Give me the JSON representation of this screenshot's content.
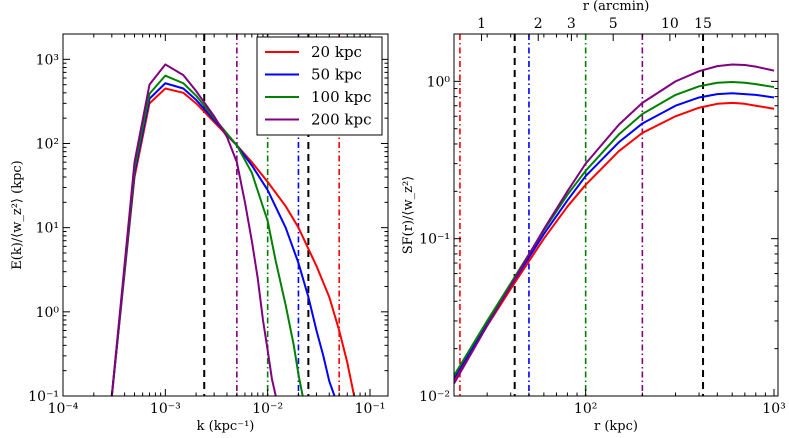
{
  "chart_data": [
    {
      "type": "line",
      "scale": "log-log",
      "xlabel": "k (kpc⁻¹)",
      "ylabel": "E(k)/⟨w_z²⟩ (kpc)",
      "xlim": [
        0.0001,
        0.15
      ],
      "ylim": [
        0.1,
        2000
      ],
      "x_ticks": [
        {
          "value": 0.0001,
          "label": "10⁻⁴"
        },
        {
          "value": 0.001,
          "label": "10⁻³"
        },
        {
          "value": 0.01,
          "label": "10⁻²"
        },
        {
          "value": 0.1,
          "label": "10⁻¹"
        }
      ],
      "y_ticks": [
        {
          "value": 0.1,
          "label": "10⁻¹"
        },
        {
          "value": 1,
          "label": "10⁰"
        },
        {
          "value": 10,
          "label": "10¹"
        },
        {
          "value": 100,
          "label": "10²"
        },
        {
          "value": 1000,
          "label": "10³"
        }
      ],
      "legend": {
        "placement": "top-right"
      },
      "series": [
        {
          "name": "20 kpc",
          "color": "#ff0000",
          "x": [
            0.0003,
            0.0005,
            0.0007,
            0.001,
            0.0015,
            0.002,
            0.003,
            0.005,
            0.007,
            0.01,
            0.015,
            0.02,
            0.03,
            0.04,
            0.05,
            0.06,
            0.07
          ],
          "y": [
            0.1,
            40,
            300,
            450,
            400,
            300,
            180,
            95,
            60,
            35,
            18,
            10,
            3.5,
            1.5,
            0.6,
            0.25,
            0.1
          ]
        },
        {
          "name": "50 kpc",
          "color": "#0000ff",
          "x": [
            0.0003,
            0.0005,
            0.0007,
            0.001,
            0.0015,
            0.002,
            0.003,
            0.005,
            0.007,
            0.01,
            0.015,
            0.02,
            0.025,
            0.03,
            0.035,
            0.04,
            0.045
          ],
          "y": [
            0.1,
            45,
            340,
            520,
            450,
            330,
            190,
            95,
            55,
            28,
            10,
            3.8,
            1.5,
            0.6,
            0.3,
            0.15,
            0.1
          ]
        },
        {
          "name": "100 kpc",
          "color": "#008000",
          "x": [
            0.0003,
            0.0005,
            0.0007,
            0.001,
            0.0015,
            0.002,
            0.003,
            0.005,
            0.007,
            0.01,
            0.012,
            0.015,
            0.018,
            0.02,
            0.022
          ],
          "y": [
            0.1,
            50,
            390,
            640,
            520,
            370,
            200,
            95,
            45,
            12,
            4,
            1.2,
            0.4,
            0.18,
            0.1
          ]
        },
        {
          "name": "200 kpc",
          "color": "#800080",
          "x": [
            0.0003,
            0.0005,
            0.0007,
            0.001,
            0.0015,
            0.002,
            0.003,
            0.004,
            0.005,
            0.006,
            0.007,
            0.008,
            0.009,
            0.01,
            0.011,
            0.012
          ],
          "y": [
            0.1,
            60,
            500,
            870,
            650,
            420,
            210,
            120,
            60,
            20,
            7,
            2.5,
            0.8,
            0.35,
            0.16,
            0.1
          ]
        }
      ],
      "vertical_lines": [
        {
          "x": 0.0024,
          "color": "#000000",
          "style": "dashed"
        },
        {
          "x": 0.025,
          "color": "#000000",
          "style": "dashed"
        },
        {
          "x": 0.005,
          "color": "#800080",
          "style": "dashdot"
        },
        {
          "x": 0.01,
          "color": "#008000",
          "style": "dashdot"
        },
        {
          "x": 0.02,
          "color": "#0000ff",
          "style": "dashdot"
        },
        {
          "x": 0.05,
          "color": "#ff0000",
          "style": "dashdot"
        }
      ]
    },
    {
      "type": "line",
      "scale": "log-log",
      "xlabel": "r (kpc)",
      "ylabel": "SF(r)/⟨w_z²⟩",
      "top_xlabel": "r (arcmin)",
      "xlim": [
        20,
        1050
      ],
      "ylim": [
        0.01,
        2
      ],
      "x_ticks": [
        {
          "value": 100,
          "label": "10²"
        },
        {
          "value": 1000,
          "label": "10³"
        }
      ],
      "top_ticks": [
        {
          "value": 28,
          "label": "1"
        },
        {
          "value": 56,
          "label": "2"
        },
        {
          "value": 84,
          "label": "3"
        },
        {
          "value": 140,
          "label": "5"
        },
        {
          "value": 280,
          "label": "10"
        },
        {
          "value": 420,
          "label": "15"
        }
      ],
      "y_ticks": [
        {
          "value": 0.01,
          "label": "10⁻²"
        },
        {
          "value": 0.1,
          "label": "10⁻¹"
        },
        {
          "value": 1,
          "label": "10⁰"
        }
      ],
      "series": [
        {
          "name": "20 kpc",
          "color": "#ff0000",
          "x": [
            20,
            30,
            40,
            60,
            80,
            100,
            150,
            200,
            300,
            400,
            500,
            600,
            700,
            800,
            1000
          ],
          "y": [
            0.0125,
            0.028,
            0.048,
            0.1,
            0.16,
            0.22,
            0.36,
            0.47,
            0.6,
            0.68,
            0.72,
            0.73,
            0.72,
            0.7,
            0.67
          ]
        },
        {
          "name": "50 kpc",
          "color": "#0000ff",
          "x": [
            20,
            30,
            40,
            60,
            80,
            100,
            150,
            200,
            300,
            400,
            500,
            600,
            700,
            800,
            1000
          ],
          "y": [
            0.013,
            0.029,
            0.05,
            0.107,
            0.175,
            0.25,
            0.41,
            0.54,
            0.7,
            0.79,
            0.83,
            0.84,
            0.83,
            0.82,
            0.79
          ]
        },
        {
          "name": "100 kpc",
          "color": "#008000",
          "x": [
            20,
            30,
            40,
            60,
            80,
            100,
            150,
            200,
            300,
            400,
            500,
            600,
            700,
            800,
            1000
          ],
          "y": [
            0.0135,
            0.03,
            0.052,
            0.113,
            0.19,
            0.27,
            0.46,
            0.62,
            0.82,
            0.93,
            0.98,
            0.99,
            0.98,
            0.96,
            0.92
          ]
        },
        {
          "name": "200 kpc",
          "color": "#800080",
          "x": [
            20,
            30,
            40,
            60,
            80,
            100,
            150,
            200,
            300,
            400,
            500,
            600,
            700,
            800,
            1000
          ],
          "y": [
            0.012,
            0.028,
            0.05,
            0.115,
            0.2,
            0.3,
            0.53,
            0.73,
            1.0,
            1.16,
            1.25,
            1.28,
            1.27,
            1.24,
            1.17
          ]
        }
      ],
      "vertical_lines": [
        {
          "x": 42,
          "color": "#000000",
          "style": "dashed"
        },
        {
          "x": 420,
          "color": "#000000",
          "style": "dashed"
        },
        {
          "x": 21.5,
          "color": "#ff0000",
          "style": "dashdot"
        },
        {
          "x": 50,
          "color": "#0000ff",
          "style": "dashdot"
        },
        {
          "x": 100,
          "color": "#008000",
          "style": "dashdot"
        },
        {
          "x": 200,
          "color": "#800080",
          "style": "dashdot"
        }
      ]
    }
  ]
}
